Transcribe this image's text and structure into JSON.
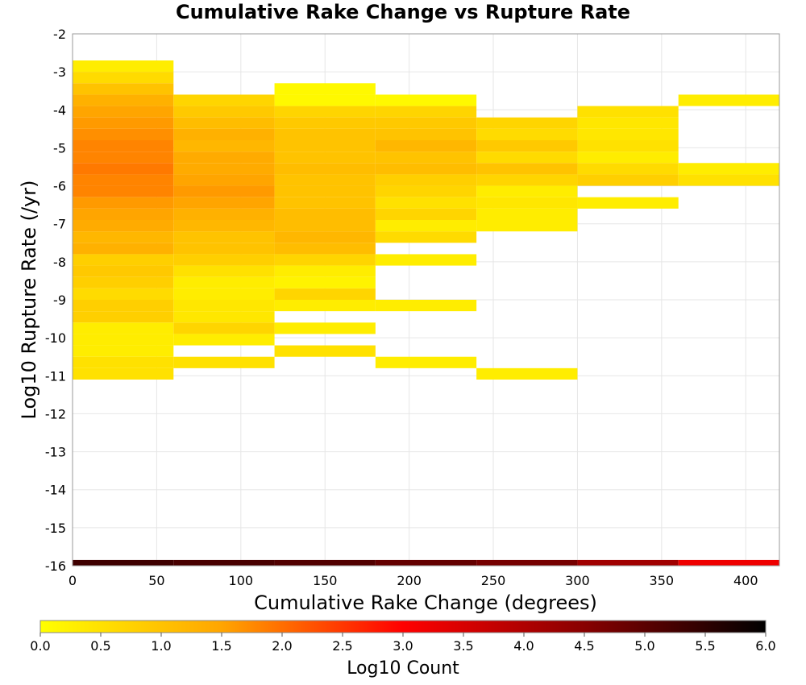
{
  "chart_data": {
    "type": "heatmap",
    "title": "Cumulative Rake Change vs Rupture Rate",
    "xlabel": "Cumulative Rake Change (degrees)",
    "ylabel": "Log10 Rupture Rate (/yr)",
    "xlim": [
      0,
      420
    ],
    "ylim": [
      -16,
      -2
    ],
    "x_ticks": [
      0,
      50,
      100,
      150,
      200,
      250,
      300,
      350,
      400
    ],
    "y_ticks": [
      -2,
      -3,
      -4,
      -5,
      -6,
      -7,
      -8,
      -9,
      -10,
      -11,
      -12,
      -13,
      -14,
      -15,
      -16
    ],
    "x_bin_width": 60,
    "y_bin_height": 0.3,
    "grid": true,
    "colorbar": {
      "label": "Log10 Count",
      "range": [
        0,
        6
      ],
      "ticks": [
        "0.0",
        "0.5",
        "1.0",
        "1.5",
        "2.0",
        "2.5",
        "3.0",
        "3.5",
        "4.0",
        "4.5",
        "5.0",
        "5.5",
        "6.0"
      ],
      "colors": [
        "#ffff00",
        "#ffa500",
        "#ff0000",
        "#880000",
        "#000000"
      ]
    },
    "columns": [
      {
        "x": 30,
        "cells": [
          [
            -2.85,
            0.3
          ],
          [
            -3.15,
            0.6
          ],
          [
            -3.45,
            1.0
          ],
          [
            -3.75,
            1.3
          ],
          [
            -4.05,
            1.5
          ],
          [
            -4.35,
            1.6
          ],
          [
            -4.65,
            1.7
          ],
          [
            -4.95,
            1.8
          ],
          [
            -5.25,
            1.8
          ],
          [
            -5.55,
            1.9
          ],
          [
            -5.85,
            1.8
          ],
          [
            -6.15,
            1.8
          ],
          [
            -6.45,
            1.6
          ],
          [
            -6.75,
            1.5
          ],
          [
            -7.05,
            1.4
          ],
          [
            -7.35,
            1.2
          ],
          [
            -7.65,
            1.3
          ],
          [
            -7.95,
            0.8
          ],
          [
            -8.25,
            0.9
          ],
          [
            -8.55,
            0.8
          ],
          [
            -8.85,
            0.6
          ],
          [
            -9.15,
            0.8
          ],
          [
            -9.45,
            0.8
          ],
          [
            -9.75,
            0.3
          ],
          [
            -10.05,
            0.3
          ],
          [
            -10.35,
            0.3
          ],
          [
            -10.65,
            0.5
          ],
          [
            -10.95,
            0.5
          ]
        ]
      },
      {
        "x": 90,
        "cells": [
          [
            -3.75,
            0.7
          ],
          [
            -4.05,
            0.9
          ],
          [
            -4.35,
            1.1
          ],
          [
            -4.65,
            1.3
          ],
          [
            -4.95,
            1.2
          ],
          [
            -5.25,
            1.4
          ],
          [
            -5.55,
            1.4
          ],
          [
            -5.85,
            1.5
          ],
          [
            -6.15,
            1.6
          ],
          [
            -6.45,
            1.5
          ],
          [
            -6.75,
            1.3
          ],
          [
            -7.05,
            1.2
          ],
          [
            -7.35,
            1.0
          ],
          [
            -7.65,
            1.0
          ],
          [
            -7.95,
            0.8
          ],
          [
            -8.25,
            0.5
          ],
          [
            -8.55,
            0.3
          ],
          [
            -8.85,
            0.3
          ],
          [
            -9.15,
            0.4
          ],
          [
            -9.45,
            0.4
          ],
          [
            -9.75,
            0.7
          ],
          [
            -10.05,
            0.3
          ],
          [
            -10.65,
            0.5
          ]
        ]
      },
      {
        "x": 150,
        "cells": [
          [
            -3.45,
            0.1
          ],
          [
            -3.75,
            0.1
          ],
          [
            -4.05,
            0.7
          ],
          [
            -4.35,
            0.9
          ],
          [
            -4.65,
            1.0
          ],
          [
            -4.95,
            1.0
          ],
          [
            -5.25,
            1.0
          ],
          [
            -5.55,
            1.1
          ],
          [
            -5.85,
            1.0
          ],
          [
            -6.15,
            1.0
          ],
          [
            -6.45,
            1.0
          ],
          [
            -6.75,
            1.1
          ],
          [
            -7.05,
            1.1
          ],
          [
            -7.35,
            1.2
          ],
          [
            -7.65,
            1.1
          ],
          [
            -7.95,
            0.7
          ],
          [
            -8.25,
            0.3
          ],
          [
            -8.55,
            0.2
          ],
          [
            -8.85,
            0.7
          ],
          [
            -9.15,
            0.3
          ],
          [
            -9.75,
            0.3
          ],
          [
            -10.35,
            0.5
          ]
        ]
      },
      {
        "x": 210,
        "cells": [
          [
            -3.75,
            0.1
          ],
          [
            -4.05,
            0.7
          ],
          [
            -4.35,
            0.9
          ],
          [
            -4.65,
            1.0
          ],
          [
            -4.95,
            1.2
          ],
          [
            -5.25,
            1.0
          ],
          [
            -5.55,
            1.1
          ],
          [
            -5.85,
            0.8
          ],
          [
            -6.15,
            0.7
          ],
          [
            -6.45,
            0.5
          ],
          [
            -6.75,
            0.7
          ],
          [
            -7.05,
            0.3
          ],
          [
            -7.35,
            0.6
          ],
          [
            -7.95,
            0.3
          ],
          [
            -9.15,
            0.3
          ],
          [
            -10.65,
            0.3
          ]
        ]
      },
      {
        "x": 270,
        "cells": [
          [
            -4.35,
            0.7
          ],
          [
            -4.65,
            0.6
          ],
          [
            -4.95,
            0.9
          ],
          [
            -5.25,
            0.6
          ],
          [
            -5.55,
            1.0
          ],
          [
            -5.85,
            0.7
          ],
          [
            -6.15,
            0.3
          ],
          [
            -6.45,
            0.4
          ],
          [
            -6.75,
            0.3
          ],
          [
            -7.05,
            0.3
          ],
          [
            -10.95,
            0.3
          ]
        ]
      },
      {
        "x": 330,
        "cells": [
          [
            -4.05,
            0.5
          ],
          [
            -4.35,
            0.4
          ],
          [
            -4.65,
            0.4
          ],
          [
            -4.95,
            0.5
          ],
          [
            -5.25,
            0.3
          ],
          [
            -5.55,
            0.6
          ],
          [
            -5.85,
            0.8
          ],
          [
            -6.45,
            0.3
          ]
        ]
      },
      {
        "x": 390,
        "cells": [
          [
            -3.75,
            0.3
          ],
          [
            -5.55,
            0.3
          ],
          [
            -5.85,
            0.5
          ]
        ]
      }
    ],
    "bottom_band": [
      5.3,
      5.2,
      5.1,
      4.9,
      4.7,
      4.2,
      3.2
    ]
  }
}
